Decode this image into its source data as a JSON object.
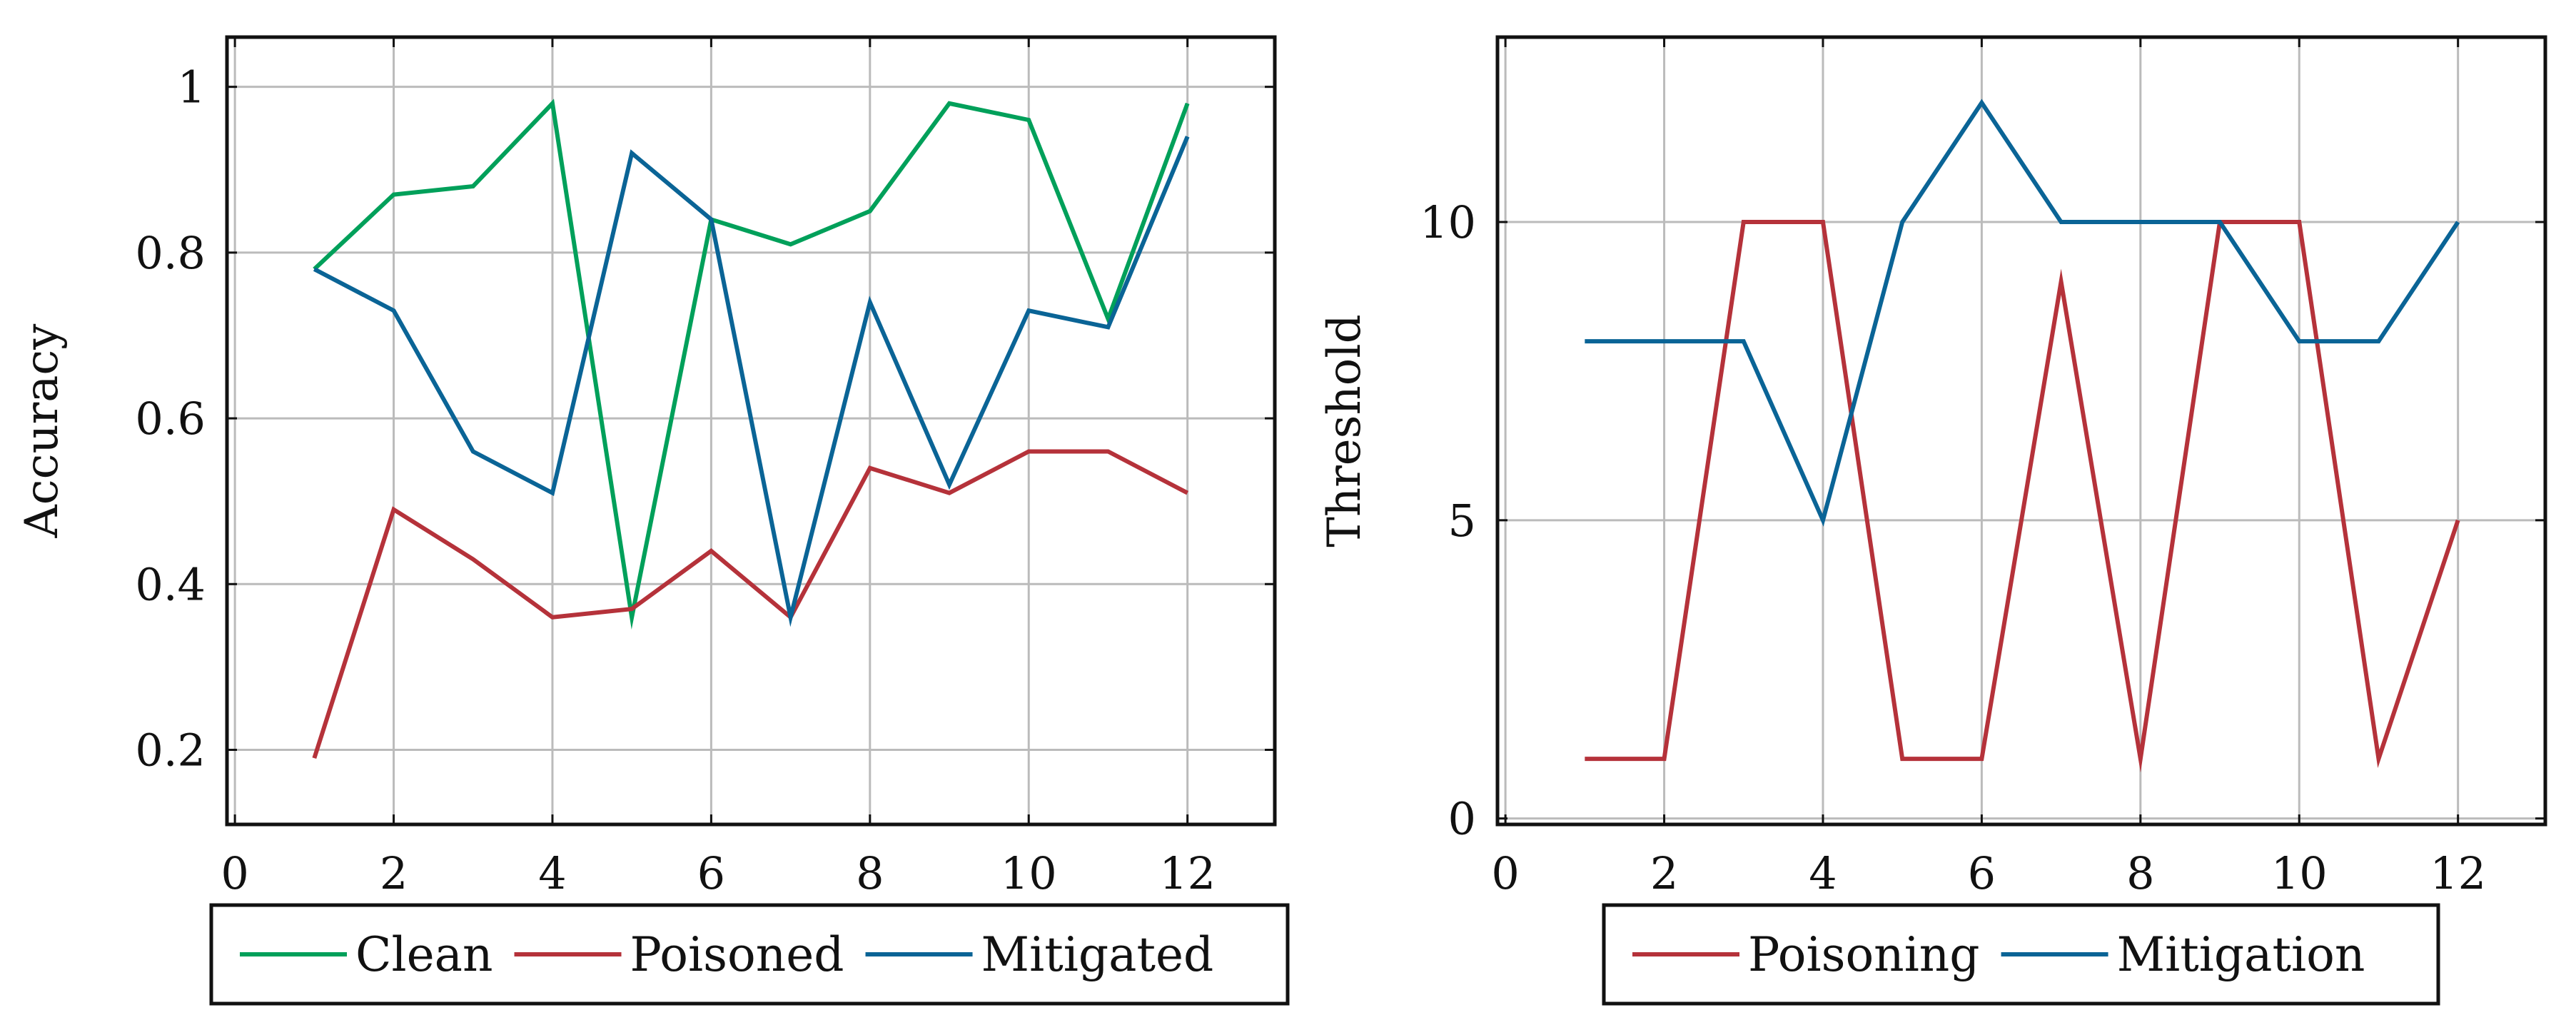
{
  "colors": {
    "clean": "#00A05A",
    "poisoned": "#B5323A",
    "mitigated": "#0A6496",
    "grid": "#BBBBBB",
    "axis": "#111111"
  },
  "chart_data": [
    {
      "type": "line",
      "title": "",
      "xlabel": "",
      "ylabel": "Accuracy",
      "xlim": [
        -0.1,
        13.1
      ],
      "ylim": [
        0.11,
        1.06
      ],
      "grid": true,
      "xticks": [
        0,
        2,
        4,
        6,
        8,
        10,
        12
      ],
      "xtick_labels": [
        "0",
        "2",
        "4",
        "6",
        "8",
        "10",
        "12"
      ],
      "yticks": [
        0.2,
        0.4,
        0.6,
        0.8,
        1.0
      ],
      "ytick_labels": [
        "0.2",
        "0.4",
        "0.6",
        "0.8",
        "1"
      ],
      "legend_position": "bottom-center",
      "x": [
        1,
        2,
        3,
        4,
        5,
        6,
        7,
        8,
        9,
        10,
        11,
        12
      ],
      "series": [
        {
          "name": "Clean",
          "color_key": "clean",
          "values": [
            0.78,
            0.87,
            0.88,
            0.98,
            0.36,
            0.84,
            0.81,
            0.85,
            0.98,
            0.96,
            0.72,
            0.98
          ]
        },
        {
          "name": "Poisoned",
          "color_key": "poisoned",
          "values": [
            0.19,
            0.49,
            0.43,
            0.36,
            0.37,
            0.44,
            0.36,
            0.54,
            0.51,
            0.56,
            0.56,
            0.51
          ]
        },
        {
          "name": "Mitigated",
          "color_key": "mitigated",
          "values": [
            0.78,
            0.73,
            0.56,
            0.51,
            0.92,
            0.84,
            0.36,
            0.74,
            0.52,
            0.73,
            0.71,
            0.94
          ]
        }
      ]
    },
    {
      "type": "line",
      "title": "",
      "xlabel": "",
      "ylabel": "Threshold",
      "xlim": [
        -0.1,
        13.1
      ],
      "ylim": [
        -0.1,
        13.1
      ],
      "grid": true,
      "xticks": [
        0,
        2,
        4,
        6,
        8,
        10,
        12
      ],
      "xtick_labels": [
        "0",
        "2",
        "4",
        "6",
        "8",
        "10",
        "12"
      ],
      "yticks": [
        0,
        5,
        10
      ],
      "ytick_labels": [
        "0",
        "5",
        "10"
      ],
      "legend_position": "bottom-center",
      "x": [
        1,
        2,
        3,
        4,
        5,
        6,
        7,
        8,
        9,
        10,
        11,
        12
      ],
      "series": [
        {
          "name": "Poisoning",
          "color_key": "poisoned",
          "values": [
            1,
            1,
            10,
            10,
            1,
            1,
            9,
            1,
            10,
            10,
            1,
            5
          ]
        },
        {
          "name": "Mitigation",
          "color_key": "mitigated",
          "values": [
            8,
            8,
            8,
            5,
            10,
            12,
            10,
            10,
            10,
            8,
            8,
            10
          ]
        }
      ]
    }
  ]
}
